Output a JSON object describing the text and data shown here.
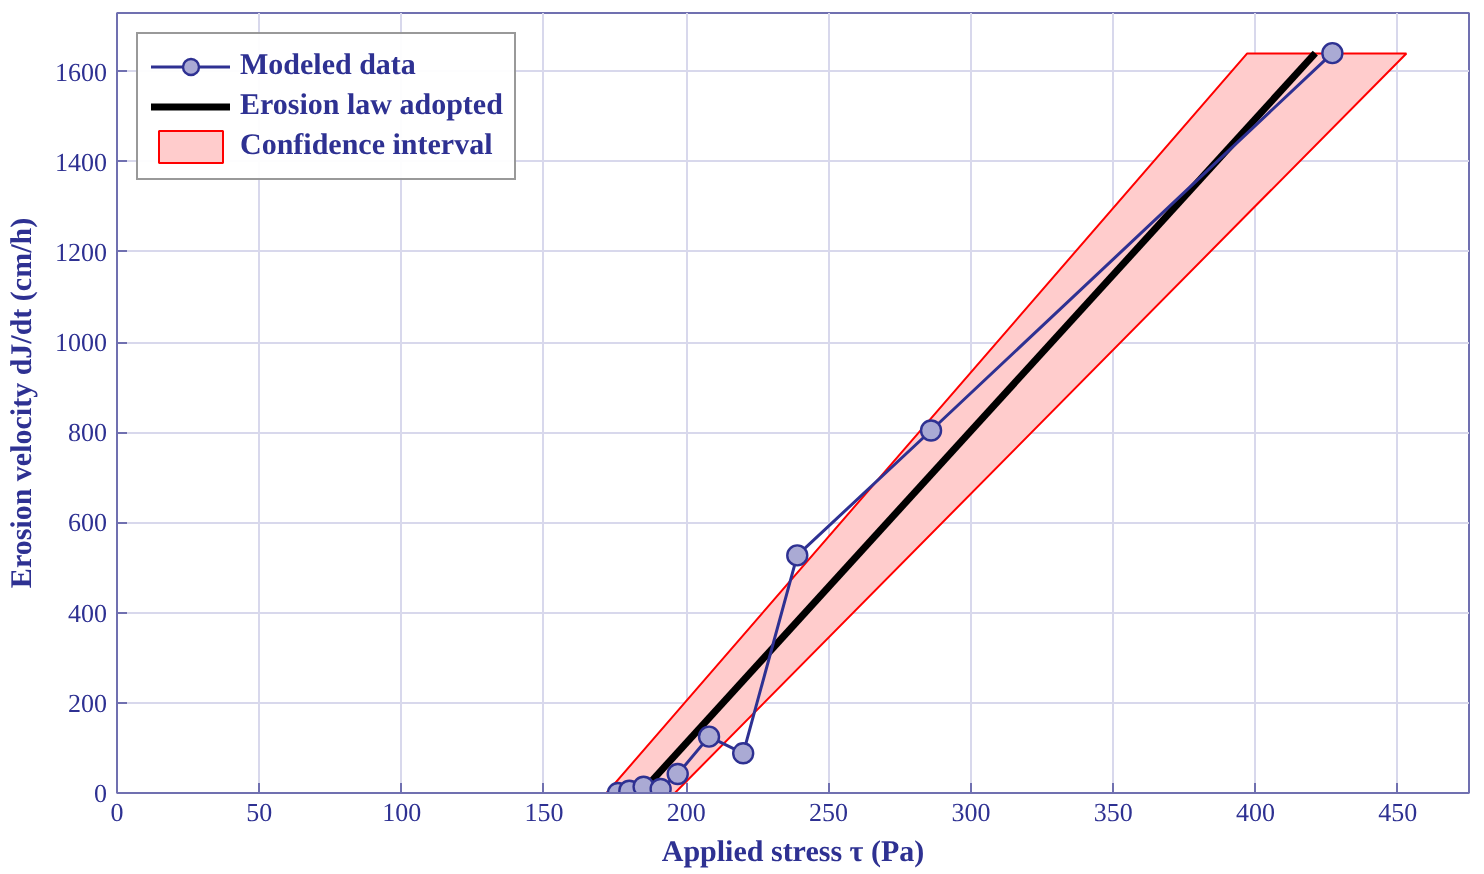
{
  "chart_data": {
    "type": "line",
    "xlabel": "Applied stress τ (Pa)",
    "ylabel": "Erosion velocity dJ/dt (cm/h)",
    "xlim": [
      0,
      475
    ],
    "xticks": [
      0,
      50,
      100,
      150,
      200,
      250,
      300,
      350,
      400,
      450
    ],
    "ylim": [
      0,
      1730
    ],
    "yticks": [
      0,
      200,
      400,
      600,
      800,
      1000,
      1200,
      1400,
      1600
    ],
    "grid": true,
    "legend": "top left",
    "series": [
      {
        "name": "Confidence interval",
        "type": "area",
        "color": "#ffcccc",
        "x": [
          172,
          196,
          397,
          453
        ],
        "values": [
          null,
          null,
          null,
          null
        ],
        "lower": [
          0,
          0,
          1283,
          1640
        ],
        "upper": [
          0,
          175,
          1640,
          1640
        ]
      },
      {
        "name": "Erosion law adopted",
        "color": "#000000",
        "x": [
          184,
          421
        ],
        "values": [
          0,
          1641
        ]
      },
      {
        "name": "Modeled data",
        "marker": "circle",
        "color": "#2e3192",
        "x": [
          176,
          180,
          185,
          191,
          197,
          208,
          220,
          239,
          286,
          427
        ],
        "values": [
          0,
          5,
          14,
          9,
          42,
          125,
          88,
          527,
          804,
          1641
        ]
      }
    ]
  }
}
